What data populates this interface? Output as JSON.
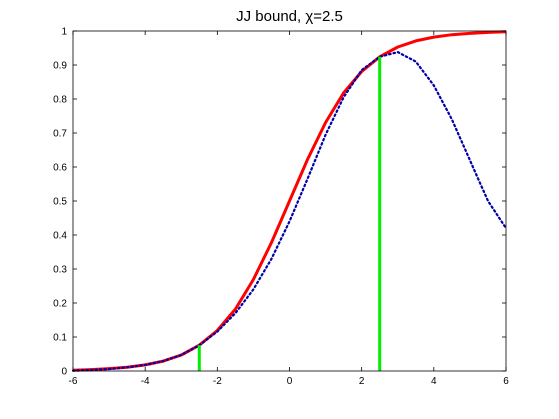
{
  "chart_data": {
    "type": "line",
    "title": "JJ bound, χ=2.5",
    "xlabel": "",
    "ylabel": "",
    "xlim": [
      -6,
      6
    ],
    "ylim": [
      0,
      1
    ],
    "xticks": [
      "-6",
      "-4",
      "-2",
      "0",
      "2",
      "4",
      "6"
    ],
    "yticks": [
      "0",
      "0.1",
      "0.2",
      "0.3",
      "0.4",
      "0.5",
      "0.6",
      "0.7",
      "0.8",
      "0.9",
      "1"
    ],
    "grid": false,
    "series": [
      {
        "style": "solid",
        "color": "#ff0000",
        "x": [
          -6,
          -5.5,
          -5,
          -4.5,
          -4,
          -3.5,
          -3,
          -2.5,
          -2,
          -1.5,
          -1,
          -0.5,
          0,
          0.5,
          1,
          1.5,
          2,
          2.5,
          3,
          3.5,
          4,
          4.5,
          5,
          5.5,
          6
        ],
        "y": [
          0.002,
          0.004,
          0.007,
          0.011,
          0.018,
          0.029,
          0.047,
          0.076,
          0.119,
          0.182,
          0.269,
          0.378,
          0.5,
          0.622,
          0.731,
          0.818,
          0.881,
          0.924,
          0.953,
          0.971,
          0.982,
          0.989,
          0.993,
          0.996,
          0.998
        ]
      },
      {
        "style": "dotted",
        "color": "#0000aa",
        "x": [
          -6,
          -5.5,
          -5,
          -4.5,
          -4,
          -3.5,
          -3,
          -2.5,
          -2,
          -1.5,
          -1,
          -0.5,
          0,
          0.5,
          1,
          1.5,
          2,
          2.5,
          3,
          3.5,
          4,
          4.5,
          5,
          5.5,
          6
        ],
        "y": [
          0.001,
          0.003,
          0.006,
          0.011,
          0.018,
          0.029,
          0.047,
          0.076,
          0.116,
          0.17,
          0.24,
          0.33,
          0.44,
          0.565,
          0.695,
          0.805,
          0.885,
          0.924,
          0.938,
          0.91,
          0.84,
          0.74,
          0.62,
          0.5,
          0.42
        ]
      },
      {
        "style": "solid",
        "color": "#00ee00",
        "x": [
          -2.5,
          -2.5
        ],
        "y": [
          0,
          0.076
        ]
      },
      {
        "style": "solid",
        "color": "#00ee00",
        "x": [
          2.5,
          2.5
        ],
        "y": [
          0,
          0.924
        ]
      }
    ]
  }
}
